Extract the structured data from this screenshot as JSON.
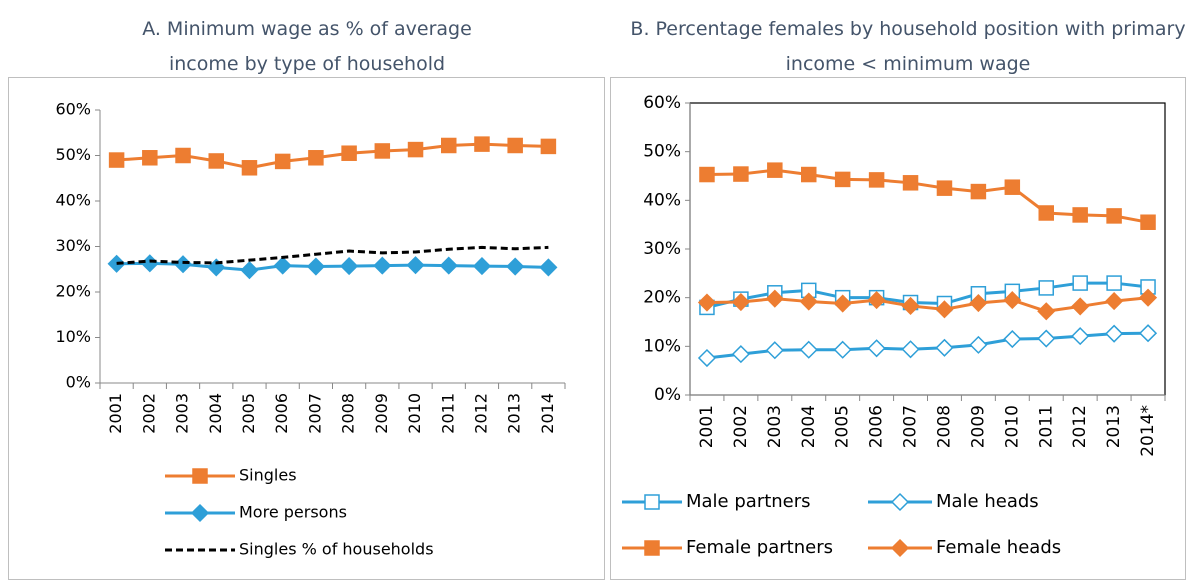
{
  "chart_data": [
    {
      "type": "line",
      "title": "A. Minimum wage as % of average income by type of household",
      "categories": [
        "2001",
        "2002",
        "2003",
        "2004",
        "2005",
        "2006",
        "2007",
        "2008",
        "2009",
        "2010",
        "2011",
        "2012",
        "2013",
        "2014"
      ],
      "ylim": [
        0,
        60
      ],
      "yticks": [
        {
          "value": 0,
          "label": "0%"
        },
        {
          "value": 10,
          "label": "10%"
        },
        {
          "value": 20,
          "label": "20%"
        },
        {
          "value": 30,
          "label": "30%"
        },
        {
          "value": 40,
          "label": "40%"
        },
        {
          "value": 50,
          "label": "50%"
        },
        {
          "value": 60,
          "label": "60%"
        }
      ],
      "grid": false,
      "series": [
        {
          "name": "Singles",
          "color": "#ed7d31",
          "marker": "square",
          "hollow": false,
          "dashed": false,
          "values": [
            49,
            49.5,
            50,
            48.8,
            47.3,
            48.7,
            49.5,
            50.5,
            51,
            51.3,
            52.2,
            52.5,
            52.2,
            52
          ]
        },
        {
          "name": "More persons",
          "color": "#2e9fd8",
          "marker": "diamond",
          "hollow": false,
          "dashed": false,
          "values": [
            26.2,
            26.3,
            26.1,
            25.4,
            24.8,
            25.8,
            25.6,
            25.7,
            25.8,
            25.9,
            25.8,
            25.7,
            25.6,
            25.4
          ]
        },
        {
          "name": "Singles % of households",
          "color": "#000000",
          "marker": "none",
          "hollow": false,
          "dashed": true,
          "values": [
            26.3,
            26.8,
            26.5,
            26.4,
            27,
            27.6,
            28.3,
            29,
            28.6,
            28.8,
            29.4,
            29.8,
            29.5,
            29.8
          ]
        }
      ]
    },
    {
      "type": "line",
      "title": "B. Percentage females by household position with primary income < minimum wage",
      "categories": [
        "2001",
        "2002",
        "2003",
        "2004",
        "2005",
        "2006",
        "2007",
        "2008",
        "2009",
        "2010",
        "2011",
        "2012",
        "2013",
        "2014*"
      ],
      "ylim": [
        0,
        60
      ],
      "yticks": [
        {
          "value": 0,
          "label": "0%"
        },
        {
          "value": 10,
          "label": "10%"
        },
        {
          "value": 20,
          "label": "20%"
        },
        {
          "value": 30,
          "label": "30%"
        },
        {
          "value": 40,
          "label": "40%"
        },
        {
          "value": 50,
          "label": "50%"
        },
        {
          "value": 60,
          "label": "60%"
        }
      ],
      "grid": false,
      "series": [
        {
          "name": "Male partners",
          "color": "#2e9fd8",
          "marker": "square",
          "hollow": true,
          "dashed": false,
          "values": [
            18,
            19.7,
            21,
            21.5,
            20,
            20,
            19,
            18.8,
            20.8,
            21.3,
            22,
            23,
            23,
            22.2
          ]
        },
        {
          "name": "Male heads",
          "color": "#2e9fd8",
          "marker": "diamond",
          "hollow": true,
          "dashed": false,
          "values": [
            7.6,
            8.4,
            9.2,
            9.3,
            9.3,
            9.6,
            9.4,
            9.7,
            10.3,
            11.5,
            11.6,
            12.1,
            12.6,
            12.7
          ]
        },
        {
          "name": "Female partners",
          "color": "#ed7d31",
          "marker": "square",
          "hollow": false,
          "dashed": false,
          "values": [
            45.3,
            45.4,
            46.2,
            45.3,
            44.3,
            44.2,
            43.6,
            42.5,
            41.8,
            42.7,
            37.4,
            37,
            36.8,
            35.5
          ]
        },
        {
          "name": "Female heads",
          "color": "#ed7d31",
          "marker": "diamond",
          "hollow": false,
          "dashed": false,
          "values": [
            19,
            19.1,
            19.8,
            19.2,
            18.8,
            19.5,
            18.3,
            17.6,
            18.9,
            19.5,
            17.2,
            18.2,
            19.3,
            20
          ]
        }
      ]
    }
  ]
}
